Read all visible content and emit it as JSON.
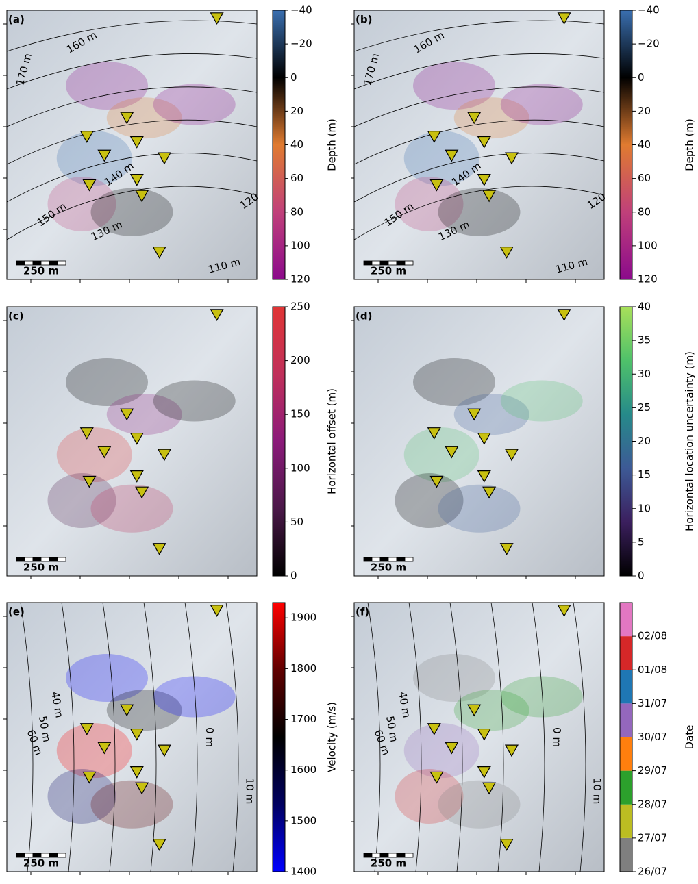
{
  "chart_data": [
    {
      "type": "colorbar",
      "panel_label": "(a)",
      "colorbar_label": "Depth (m)",
      "scale_bar": "250 m",
      "ylim": [
        120,
        -40
      ],
      "colors": [
        "#8b0a8b",
        "#c0407a",
        "#e07b30",
        "#000000",
        "#3a6fb0"
      ],
      "yticks": [
        {
          "value": -40,
          "label": "−40"
        },
        {
          "value": -20,
          "label": "−20"
        },
        0,
        20,
        40,
        60,
        80,
        100,
        120
      ],
      "contour_labels": [
        "160 m",
        "170 m",
        "150 m",
        "140 m",
        "130 m",
        "120",
        "110 m"
      ]
    },
    {
      "type": "colorbar",
      "panel_label": "(b)",
      "colorbar_label": "Depth (m)",
      "scale_bar": "250 m",
      "ylim": [
        120,
        -40
      ],
      "colors": [
        "#8b0a8b",
        "#c0407a",
        "#e07b30",
        "#000000",
        "#3a6fb0"
      ],
      "yticks": [
        {
          "value": -40,
          "label": "−40"
        },
        {
          "value": -20,
          "label": "−20"
        },
        0,
        20,
        40,
        60,
        80,
        100,
        120
      ],
      "contour_labels": [
        "160 m",
        "170 m",
        "150 m",
        "140 m",
        "130 m",
        "120",
        "110 m"
      ]
    },
    {
      "type": "colorbar",
      "panel_label": "(c)",
      "colorbar_label": "Horizontal offset (m)",
      "scale_bar": "250 m",
      "ylim": [
        0,
        250
      ],
      "colors": [
        "#000000",
        "#4a1848",
        "#8b1a7a",
        "#c0305a",
        "#e03535"
      ],
      "yticks": [
        0,
        50,
        100,
        150,
        200,
        250
      ],
      "contour_labels": []
    },
    {
      "type": "colorbar",
      "panel_label": "(d)",
      "colorbar_label": "Horizontal location uncertainty (m)",
      "scale_bar": "250 m",
      "ylim": [
        0,
        40
      ],
      "colors": [
        "#000000",
        "#3b1f5e",
        "#3d5a96",
        "#268a8a",
        "#4fc16a",
        "#a8e05a"
      ],
      "yticks": [
        0,
        5,
        10,
        15,
        20,
        25,
        30,
        35,
        40
      ],
      "contour_labels": []
    },
    {
      "type": "colorbar",
      "panel_label": "(e)",
      "colorbar_label": "Velocity (m/s)",
      "scale_bar": "250 m",
      "ylim": [
        1400,
        1930
      ],
      "colors": [
        "#0000ff",
        "#000060",
        "#000000",
        "#600000",
        "#ff0000"
      ],
      "yticks": [
        1400,
        1500,
        1600,
        1700,
        1800,
        1900
      ],
      "contour_labels": [
        "40 m",
        "50 m",
        "60 m",
        "0 m",
        "10 m"
      ]
    },
    {
      "type": "category_bar",
      "panel_label": "(f)",
      "colorbar_label": "Date",
      "scale_bar": "250 m",
      "categories": [
        "26/07",
        "27/07",
        "28/07",
        "29/07",
        "30/07",
        "31/07",
        "01/08",
        "02/08"
      ],
      "colors": [
        "#7f7f7f",
        "#bcbd22",
        "#2ca02c",
        "#ff7f0e",
        "#9467bd",
        "#1f77b4",
        "#d62728",
        "#e377c2"
      ],
      "contour_labels": [
        "40 m",
        "50 m",
        "60 m",
        "0 m",
        "10 m"
      ]
    }
  ]
}
